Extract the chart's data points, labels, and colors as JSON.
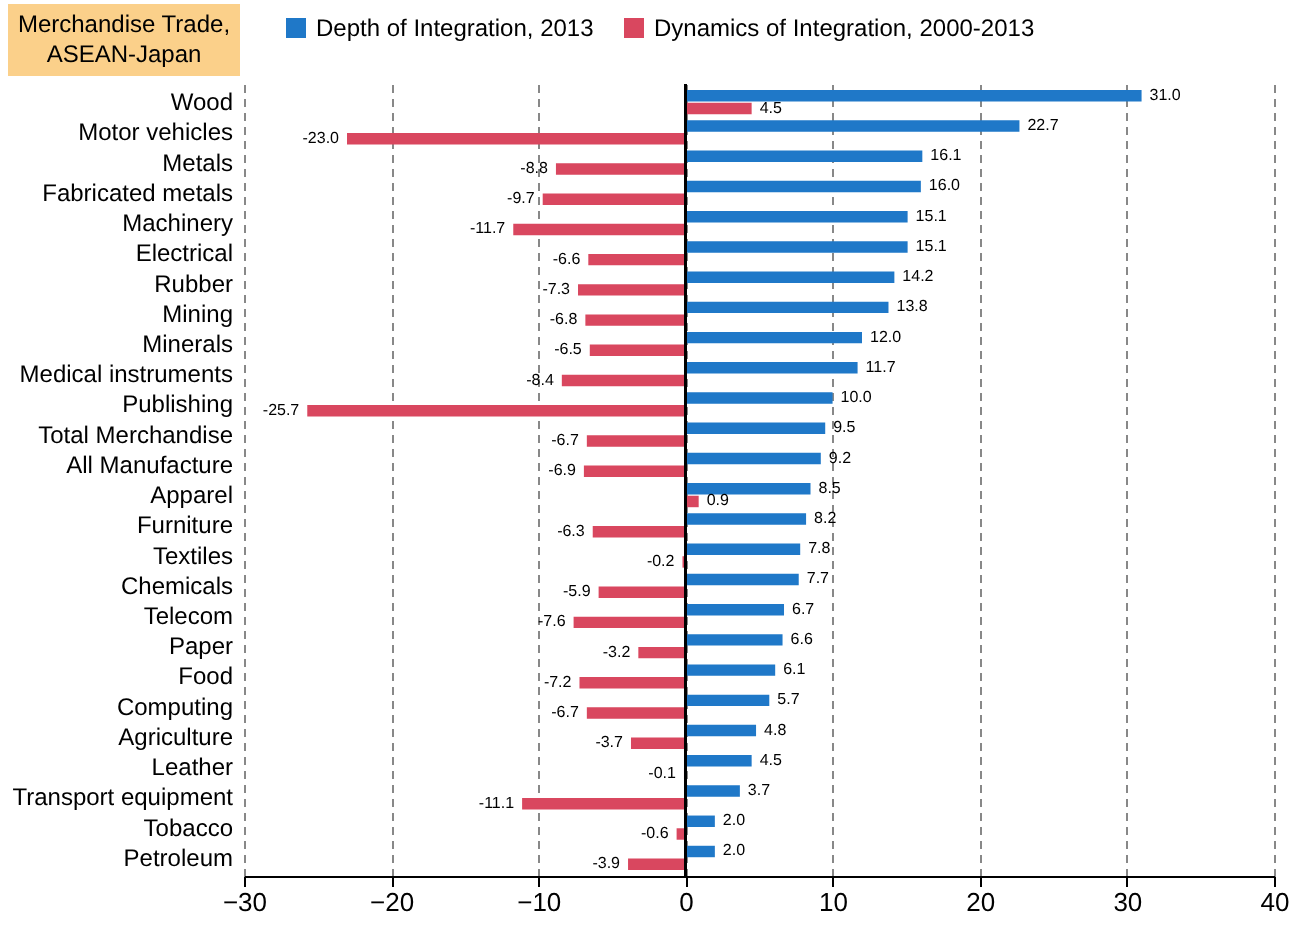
{
  "chart_data": {
    "type": "bar",
    "orientation": "horizontal",
    "title": "Merchandise Trade, ASEAN-Japan",
    "categories": [
      "Wood",
      "Motor vehicles",
      "Metals",
      "Fabricated metals",
      "Machinery",
      "Electrical",
      "Rubber",
      "Mining",
      "Minerals",
      "Medical instruments",
      "Publishing",
      "Total Merchandise",
      "All Manufacture",
      "Apparel",
      "Furniture",
      "Textiles",
      "Chemicals",
      "Telecom",
      "Paper",
      "Food",
      "Computing",
      "Agriculture",
      "Leather",
      "Transport equipment",
      "Tobacco",
      "Petroleum"
    ],
    "series": [
      {
        "name": "Depth of Integration, 2013",
        "color": "#1f78c8",
        "values": [
          31.0,
          22.7,
          16.1,
          16.0,
          15.1,
          15.1,
          14.2,
          13.8,
          12.0,
          11.7,
          10.0,
          9.5,
          9.2,
          8.5,
          8.2,
          7.8,
          7.7,
          6.7,
          6.6,
          6.1,
          5.7,
          4.8,
          4.5,
          3.7,
          2.0,
          2.0
        ],
        "value_labels": [
          "31.0",
          "22.7",
          "16.1",
          "16.0",
          "15.1",
          "15.1",
          "14.2",
          "13.8",
          "12.0",
          "11.7",
          "10.0",
          "9.5",
          "9.2",
          "8.5",
          "8.2",
          "7.8",
          "7.7",
          "6.7",
          "6.6",
          "6.1",
          "5.7",
          "4.8",
          "4.5",
          "3.7",
          "2.0",
          "2.0"
        ]
      },
      {
        "name": "Dynamics of Integration, 2000-2013",
        "color": "#d9475f",
        "values": [
          4.5,
          -23.0,
          -8.8,
          -9.7,
          -11.7,
          -6.6,
          -7.3,
          -6.8,
          -6.5,
          -8.4,
          -25.7,
          -6.7,
          -6.9,
          0.9,
          -6.3,
          -0.2,
          -5.9,
          -7.6,
          -3.2,
          -7.2,
          -6.7,
          -3.7,
          -0.1,
          -11.1,
          -0.6,
          -3.9
        ],
        "value_labels": [
          "4.5",
          "-23.0",
          "-8.8",
          "-9.7",
          "-11.7",
          "-6.6",
          "-7.3",
          "-6.8",
          "-6.5",
          "-8.4",
          "-25.7",
          "-6.7",
          "-6.9",
          "0.9",
          "-6.3",
          "-0.2",
          "-5.9",
          "-7.6",
          "-3.2",
          "-7.2",
          "-6.7",
          "-3.7",
          "-0.1",
          "-11.1",
          "-0.6",
          "-3.9"
        ]
      }
    ],
    "xlim": [
      -30,
      40
    ],
    "xticks": [
      -30,
      -20,
      -10,
      0,
      10,
      20,
      30,
      40
    ],
    "grid": "x",
    "legend": "top"
  }
}
